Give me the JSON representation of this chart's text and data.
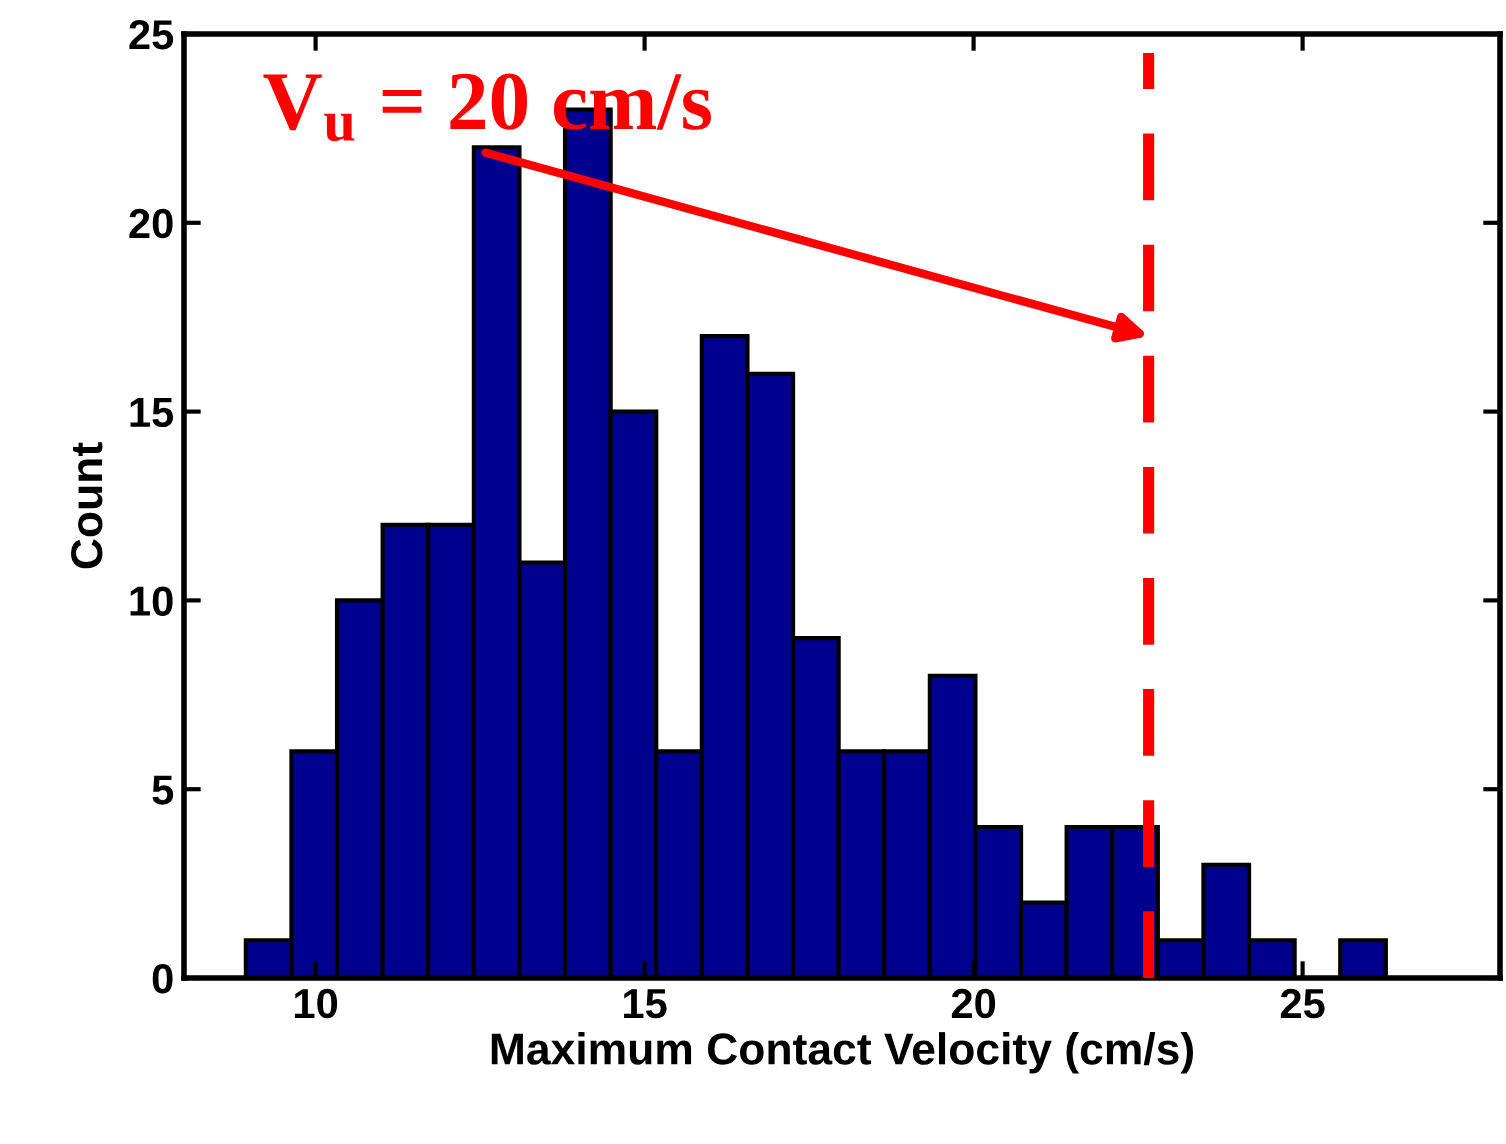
{
  "chart_data": {
    "type": "histogram",
    "xlabel": "Maximum Contact Velocity (cm/s)",
    "ylabel": "Count",
    "bins": [
      8.94,
      9.633,
      10.326,
      11.019,
      11.712,
      12.405,
      13.098,
      13.791,
      14.484,
      15.177,
      15.87,
      16.563,
      17.256,
      17.949,
      18.642,
      19.335,
      20.028,
      20.721,
      21.414,
      22.107,
      22.8,
      23.493,
      24.186,
      24.879,
      25.572,
      26.265
    ],
    "values": [
      1,
      6,
      10,
      12,
      12,
      22,
      11,
      23,
      15,
      6,
      17,
      16,
      9,
      6,
      6,
      8,
      4,
      2,
      4,
      4,
      1,
      3,
      1,
      0,
      1
    ],
    "color": "#00008f",
    "xlim": [
      8,
      28
    ],
    "xticks": [
      10,
      15,
      20,
      25
    ],
    "ylim": [
      0,
      25
    ],
    "yticks": [
      0,
      5,
      10,
      15,
      20,
      25
    ],
    "ref_lines": [
      {
        "axis": "x",
        "value": 22.66,
        "color": "#ff0000",
        "line_style": "dashed"
      }
    ],
    "annotations": [
      {
        "text": "V$_{u}$ = 20 cm/s",
        "x": 22.66,
        "y": 17
      }
    ],
    "grid": false,
    "legend": false
  }
}
